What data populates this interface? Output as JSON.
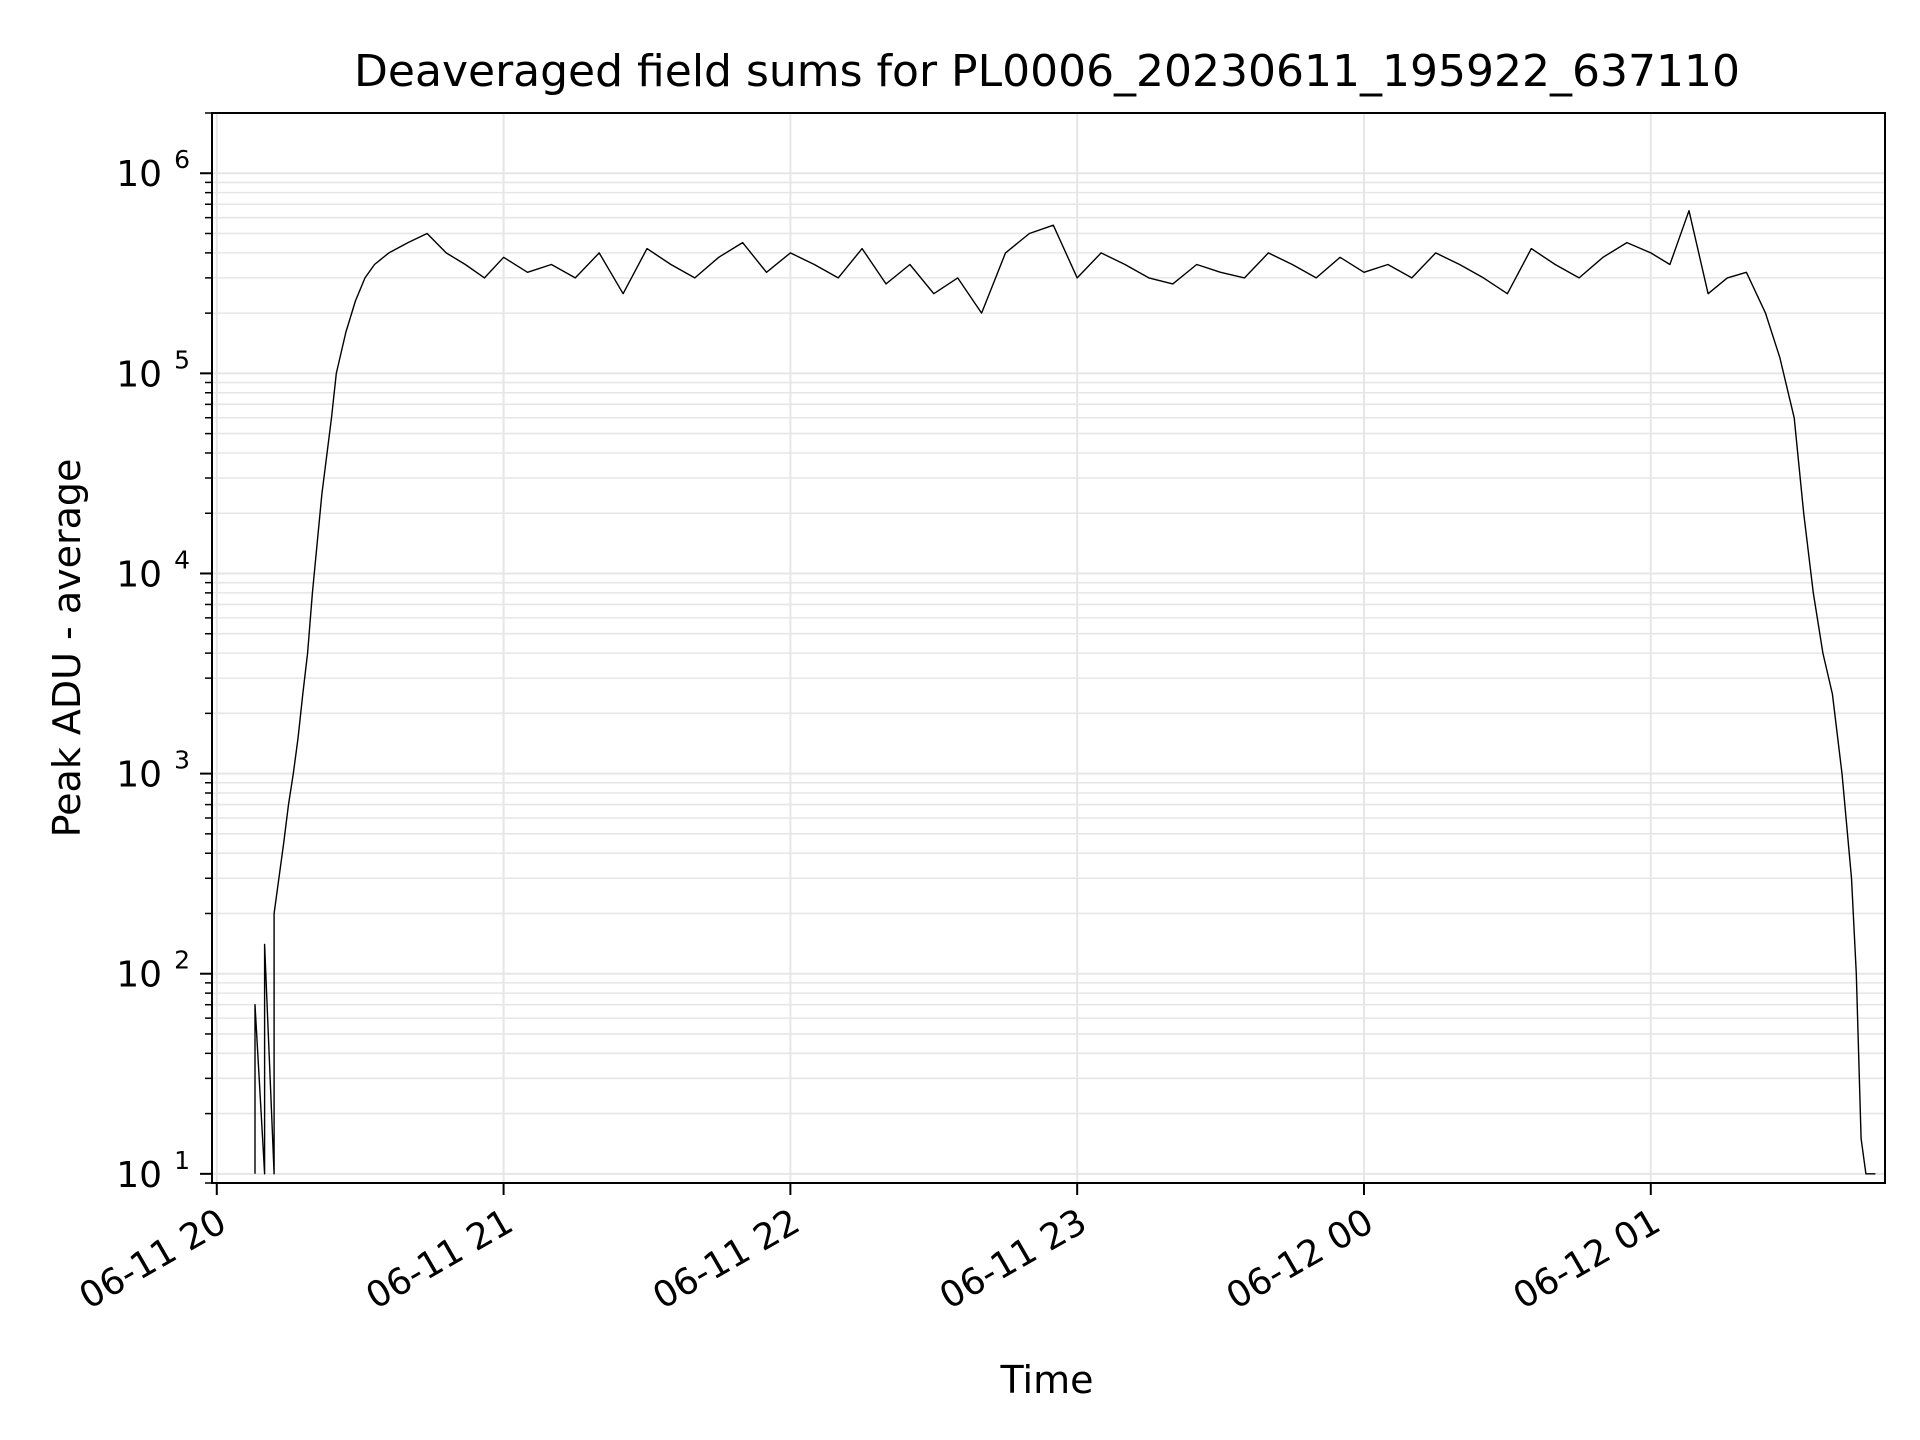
{
  "chart_data": {
    "type": "line",
    "title": "Deaveraged field sums for PL0006_20230611_195922_637110",
    "xlabel": "Time",
    "ylabel": "Peak ADU - average",
    "y_scale": "log",
    "ylim": [
      9,
      2000000
    ],
    "xlim": [
      "2023-06-11 19:59",
      "2023-06-12 01:49"
    ],
    "x_ticks": [
      {
        "time": "2023-06-11 20:00",
        "label": "06-11 20"
      },
      {
        "time": "2023-06-11 21:00",
        "label": "06-11 21"
      },
      {
        "time": "2023-06-11 22:00",
        "label": "06-11 22"
      },
      {
        "time": "2023-06-11 23:00",
        "label": "06-11 23"
      },
      {
        "time": "2023-06-12 00:00",
        "label": "06-12 00"
      },
      {
        "time": "2023-06-12 01:00",
        "label": "06-12 01"
      }
    ],
    "y_ticks": [
      {
        "value": 10,
        "base": "10",
        "exp": "1"
      },
      {
        "value": 100,
        "base": "10",
        "exp": "2"
      },
      {
        "value": 1000,
        "base": "10",
        "exp": "3"
      },
      {
        "value": 10000,
        "base": "10",
        "exp": "4"
      },
      {
        "value": 100000,
        "base": "10",
        "exp": "5"
      },
      {
        "value": 1000000,
        "base": "10",
        "exp": "6"
      }
    ],
    "grid": true,
    "line_color": "#000000",
    "grid_color": "#e6e6e6",
    "series": [
      {
        "x": [
          "2023-06-11 20:08",
          "2023-06-11 20:08",
          "2023-06-11 20:10",
          "2023-06-11 20:10",
          "2023-06-11 20:12",
          "2023-06-11 20:12",
          "2023-06-11 20:13",
          "2023-06-11 20:14",
          "2023-06-11 20:15",
          "2023-06-11 20:16",
          "2023-06-11 20:17",
          "2023-06-11 20:18",
          "2023-06-11 20:19",
          "2023-06-11 20:20",
          "2023-06-11 20:22",
          "2023-06-11 20:24",
          "2023-06-11 20:25",
          "2023-06-11 20:27",
          "2023-06-11 20:29",
          "2023-06-11 20:31",
          "2023-06-11 20:33",
          "2023-06-11 20:36",
          "2023-06-11 20:40",
          "2023-06-11 20:44",
          "2023-06-11 20:48",
          "2023-06-11 20:52",
          "2023-06-11 20:56",
          "2023-06-11 21:00",
          "2023-06-11 21:05",
          "2023-06-11 21:10",
          "2023-06-11 21:15",
          "2023-06-11 21:20",
          "2023-06-11 21:25",
          "2023-06-11 21:30",
          "2023-06-11 21:35",
          "2023-06-11 21:40",
          "2023-06-11 21:45",
          "2023-06-11 21:50",
          "2023-06-11 21:55",
          "2023-06-11 22:00",
          "2023-06-11 22:05",
          "2023-06-11 22:10",
          "2023-06-11 22:15",
          "2023-06-11 22:20",
          "2023-06-11 22:25",
          "2023-06-11 22:30",
          "2023-06-11 22:35",
          "2023-06-11 22:40",
          "2023-06-11 22:45",
          "2023-06-11 22:50",
          "2023-06-11 22:55",
          "2023-06-11 23:00",
          "2023-06-11 23:05",
          "2023-06-11 23:10",
          "2023-06-11 23:15",
          "2023-06-11 23:20",
          "2023-06-11 23:25",
          "2023-06-11 23:30",
          "2023-06-11 23:35",
          "2023-06-11 23:40",
          "2023-06-11 23:45",
          "2023-06-11 23:50",
          "2023-06-11 23:55",
          "2023-06-12 00:00",
          "2023-06-12 00:05",
          "2023-06-12 00:10",
          "2023-06-12 00:15",
          "2023-06-12 00:20",
          "2023-06-12 00:25",
          "2023-06-12 00:30",
          "2023-06-12 00:35",
          "2023-06-12 00:40",
          "2023-06-12 00:45",
          "2023-06-12 00:50",
          "2023-06-12 00:55",
          "2023-06-12 01:00",
          "2023-06-12 01:04",
          "2023-06-12 01:08",
          "2023-06-12 01:12",
          "2023-06-12 01:16",
          "2023-06-12 01:20",
          "2023-06-12 01:24",
          "2023-06-12 01:27",
          "2023-06-12 01:30",
          "2023-06-12 01:32",
          "2023-06-12 01:34",
          "2023-06-12 01:36",
          "2023-06-12 01:38",
          "2023-06-12 01:40",
          "2023-06-12 01:42",
          "2023-06-12 01:43",
          "2023-06-12 01:44",
          "2023-06-12 01:45",
          "2023-06-12 01:46",
          "2023-06-12 01:47"
        ],
        "y": [
          10,
          70,
          10,
          140,
          10,
          200,
          300,
          450,
          700,
          1000,
          1500,
          2500,
          4000,
          8000,
          25000,
          60000,
          100000,
          160000,
          230000,
          300000,
          350000,
          400000,
          450000,
          500000,
          400000,
          350000,
          300000,
          380000,
          320000,
          350000,
          300000,
          400000,
          250000,
          420000,
          350000,
          300000,
          380000,
          450000,
          320000,
          400000,
          350000,
          300000,
          420000,
          280000,
          350000,
          250000,
          300000,
          200000,
          400000,
          500000,
          550000,
          300000,
          400000,
          350000,
          300000,
          280000,
          350000,
          320000,
          300000,
          400000,
          350000,
          300000,
          380000,
          320000,
          350000,
          300000,
          400000,
          350000,
          300000,
          250000,
          420000,
          350000,
          300000,
          380000,
          450000,
          400000,
          350000,
          650000,
          250000,
          300000,
          320000,
          200000,
          120000,
          60000,
          20000,
          8000,
          4000,
          2500,
          1000,
          300,
          100,
          15,
          10,
          10,
          10
        ]
      }
    ]
  }
}
